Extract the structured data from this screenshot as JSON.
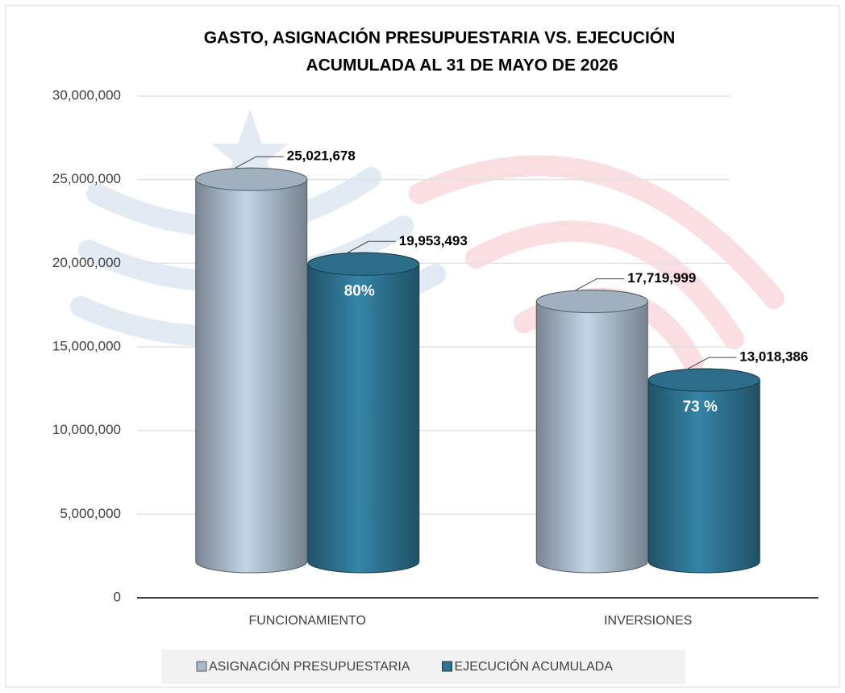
{
  "chart_data": {
    "type": "bar",
    "title": [
      "GASTO, ASIGNACIÓN PRESUPUESTARIA VS. EJECUCIÓN",
      "ACUMULADA AL 31 DE MAYO DE 2026"
    ],
    "categories": [
      "FUNCIONAMIENTO",
      "INVERSIONES"
    ],
    "series": [
      {
        "name": "ASIGNACIÓN PRESUPUESTARIA",
        "color": "#a9b9c9",
        "values": [
          25021678,
          17719999
        ],
        "value_labels": [
          "25,021,678",
          "17,719,999"
        ]
      },
      {
        "name": "EJECUCIÓN ACUMULADA",
        "color": "#2e7391",
        "values": [
          19953493,
          13018386
        ],
        "value_labels": [
          "19,953,493",
          "13,018,386"
        ],
        "annotations": [
          "80%",
          "73 %"
        ]
      }
    ],
    "ylim": [
      0,
      30000000
    ],
    "yticks": [
      0,
      {
        "value": 5000000,
        "label": "5,000,000"
      },
      {
        "value": 10000000,
        "label": "10,000,000"
      },
      {
        "value": 15000000,
        "label": "15,000,000"
      },
      {
        "value": 20000000,
        "label": "20,000,000"
      },
      {
        "value": 25000000,
        "label": "25,000,000"
      },
      {
        "value": 30000000,
        "label": "30,000,000"
      }
    ],
    "grid": true,
    "legend": "bottom"
  }
}
